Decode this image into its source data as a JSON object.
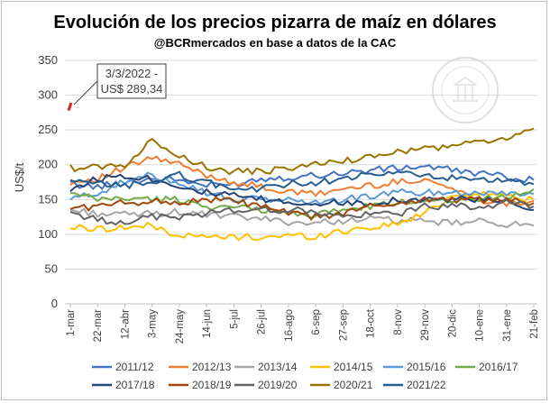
{
  "chart_data": {
    "type": "line",
    "title": "Evolución de los precios pizarra de maíz en dólares",
    "subtitle": "@BCRmercados en base a datos de la CAC",
    "ylabel": "US$/t",
    "xlabel": "",
    "ylim": [
      0,
      350
    ],
    "yticks": [
      0,
      50,
      100,
      150,
      200,
      250,
      300,
      350
    ],
    "categories": [
      "1-mar",
      "22-mar",
      "12-abr",
      "3-may",
      "24-may",
      "14-jun",
      "5-jul",
      "26-jul",
      "16-ago",
      "6-sep",
      "27-sep",
      "18-oct",
      "8-nov",
      "29-nov",
      "20-dic",
      "10-ene",
      "31-ene",
      "21-feb"
    ],
    "annotation": {
      "line1": "3/3/2022 -",
      "line2": "US$ 289,34",
      "x_index": 0.1,
      "y": 289.34
    },
    "watermark": "BOLSA DE COMERCIO DE ROSARIO",
    "series": [
      {
        "name": "2011/12",
        "color": "#4472c4",
        "values": [
          172,
          168,
          175,
          180,
          178,
          170,
          172,
          180,
          182,
          185,
          188,
          192,
          195,
          198,
          192,
          188,
          182,
          178
        ]
      },
      {
        "name": "2012/13",
        "color": "#ed7d31",
        "values": [
          175,
          180,
          195,
          210,
          200,
          185,
          175,
          168,
          160,
          158,
          165,
          170,
          175,
          180,
          165,
          150,
          145,
          148
        ]
      },
      {
        "name": "2013/14",
        "color": "#a5a5a5",
        "values": [
          135,
          130,
          128,
          130,
          132,
          128,
          125,
          122,
          118,
          116,
          120,
          122,
          120,
          118,
          116,
          118,
          115,
          112
        ]
      },
      {
        "name": "2014/15",
        "color": "#ffc000",
        "values": [
          110,
          108,
          110,
          112,
          98,
          96,
          96,
          96,
          98,
          97,
          105,
          110,
          115,
          130,
          155,
          160,
          155,
          150
        ]
      },
      {
        "name": "2015/16",
        "color": "#5b9bd5",
        "values": [
          150,
          160,
          175,
          185,
          175,
          160,
          150,
          150,
          150,
          145,
          150,
          155,
          160,
          160,
          160,
          160,
          160,
          158
        ]
      },
      {
        "name": "2016/17",
        "color": "#70ad47",
        "values": [
          158,
          150,
          152,
          150,
          150,
          140,
          138,
          136,
          130,
          128,
          135,
          140,
          145,
          150,
          150,
          150,
          155,
          165
        ]
      },
      {
        "name": "2017/18",
        "color": "#264478",
        "values": [
          165,
          180,
          185,
          180,
          170,
          160,
          155,
          150,
          145,
          145,
          145,
          145,
          150,
          150,
          150,
          150,
          145,
          135
        ]
      },
      {
        "name": "2018/19",
        "color": "#9e480e",
        "values": [
          138,
          140,
          145,
          148,
          145,
          150,
          148,
          140,
          130,
          125,
          130,
          140,
          145,
          150,
          150,
          150,
          148,
          145
        ]
      },
      {
        "name": "2019/20",
        "color": "#636363",
        "values": [
          132,
          120,
          118,
          125,
          125,
          130,
          135,
          135,
          135,
          132,
          125,
          128,
          130,
          140,
          140,
          140,
          145,
          140
        ]
      },
      {
        "name": "2020/21",
        "color": "#997300",
        "values": [
          195,
          197,
          200,
          235,
          215,
          195,
          190,
          190,
          195,
          200,
          205,
          212,
          218,
          222,
          228,
          232,
          238,
          252
        ]
      },
      {
        "name": "2021/22",
        "color": "#255e91",
        "values": [
          175,
          172,
          170,
          175,
          185,
          175,
          165,
          165,
          172,
          175,
          180,
          185,
          188,
          185,
          180,
          178,
          175,
          172
        ]
      }
    ],
    "highlight": {
      "series": "2021/22",
      "color": "#e02020",
      "values": [
        278,
        289
      ]
    }
  }
}
